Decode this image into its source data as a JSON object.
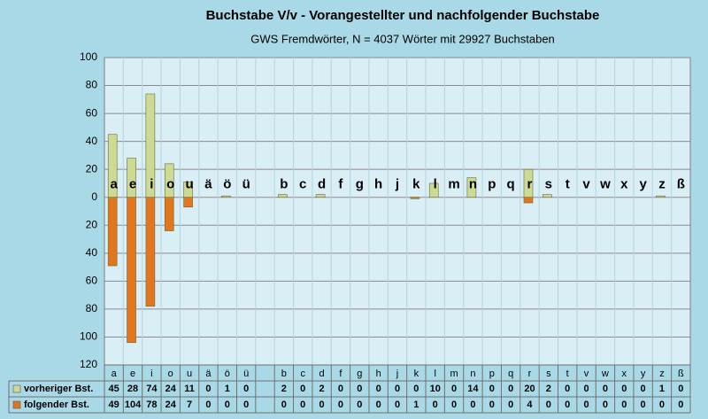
{
  "chart_data": {
    "type": "bar",
    "title": "Buchstabe V/v - Vorangestellter und nachfolgender Buchstabe",
    "subtitle": "GWS Fremdwörter,  N = 4037 Wörter mit 29927 Buchstaben",
    "categories": [
      "a",
      "e",
      "i",
      "o",
      "u",
      "ä",
      "ö",
      "ü",
      null,
      "b",
      "c",
      "d",
      "f",
      "g",
      "h",
      "j",
      "k",
      "l",
      "m",
      "n",
      "p",
      "q",
      "r",
      "s",
      "t",
      "v",
      "w",
      "x",
      "y",
      "z",
      "ß"
    ],
    "series": [
      {
        "name": "vorheriger Bst.",
        "color": "#cdda94",
        "values": [
          45,
          28,
          74,
          24,
          11,
          0,
          1,
          0,
          null,
          2,
          0,
          2,
          0,
          0,
          0,
          0,
          0,
          10,
          0,
          14,
          0,
          0,
          20,
          2,
          0,
          0,
          0,
          0,
          0,
          1,
          0
        ]
      },
      {
        "name": "folgender Bst.",
        "color": "#e2761c",
        "values": [
          -49,
          -104,
          -78,
          -24,
          -7,
          0,
          0,
          0,
          null,
          0,
          0,
          0,
          0,
          0,
          0,
          0,
          -1,
          0,
          0,
          0,
          0,
          0,
          -4,
          0,
          0,
          0,
          0,
          0,
          0,
          0,
          0
        ],
        "value_labels": [
          "49",
          "104",
          "78",
          "24",
          "7",
          "0",
          "0",
          "0",
          null,
          "0",
          "0",
          "0",
          "0",
          "0",
          "0",
          "0",
          "1",
          "0",
          "0",
          "0",
          "0",
          "0",
          "4",
          "0",
          "0",
          "0",
          "0",
          "0",
          "0",
          "0",
          "0"
        ]
      }
    ],
    "ylim": [
      -120,
      100
    ],
    "yticks": [
      100,
      80,
      60,
      40,
      20,
      0,
      {
        "value": -20,
        "label": "20"
      },
      {
        "value": -40,
        "label": "40"
      },
      {
        "value": -60,
        "label": "60"
      },
      {
        "value": -80,
        "label": "80"
      },
      {
        "value": -100,
        "label": "100"
      },
      {
        "value": -120,
        "label": "120"
      }
    ],
    "grid": true
  }
}
